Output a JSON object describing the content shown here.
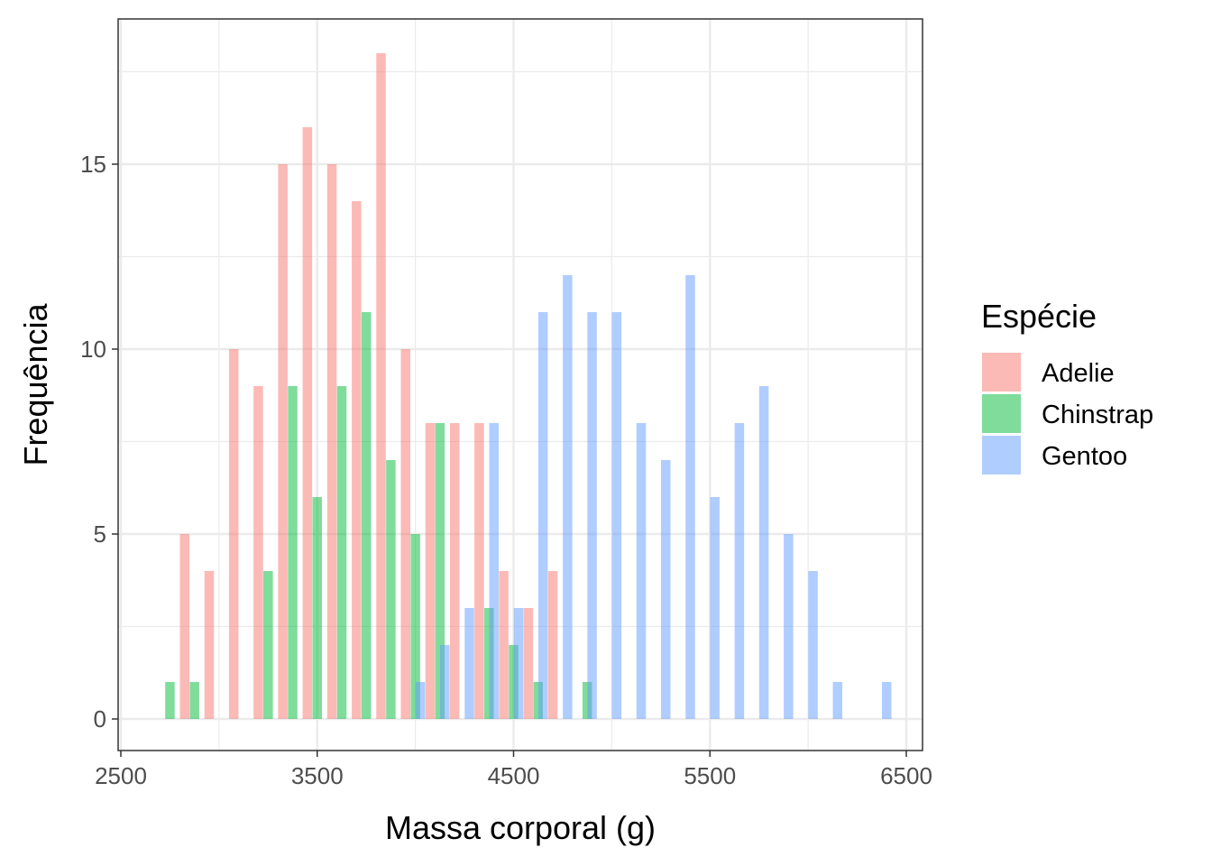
{
  "chart_data": {
    "type": "bar",
    "xlabel": "Massa corporal (g)",
    "ylabel": "Frequência",
    "xlim": [
      2500,
      6500
    ],
    "ylim": [
      0,
      18
    ],
    "x_ticks": [
      "2500",
      "3500",
      "4500",
      "5500",
      "6500"
    ],
    "y_ticks": [
      "0",
      "5",
      "10",
      "15"
    ],
    "grid": true,
    "legend": {
      "title": "Espécie",
      "placement": "right"
    },
    "series": [
      {
        "name": "Adelie",
        "color": "#F8766D",
        "points": [
          {
            "x": 2825,
            "y": 5
          },
          {
            "x": 2950,
            "y": 4
          },
          {
            "x": 3075,
            "y": 10
          },
          {
            "x": 3200,
            "y": 9
          },
          {
            "x": 3325,
            "y": 15
          },
          {
            "x": 3450,
            "y": 16
          },
          {
            "x": 3575,
            "y": 15
          },
          {
            "x": 3700,
            "y": 14
          },
          {
            "x": 3825,
            "y": 18
          },
          {
            "x": 3950,
            "y": 10
          },
          {
            "x": 4075,
            "y": 8
          },
          {
            "x": 4200,
            "y": 8
          },
          {
            "x": 4325,
            "y": 8
          },
          {
            "x": 4450,
            "y": 4
          },
          {
            "x": 4575,
            "y": 3
          },
          {
            "x": 4700,
            "y": 4
          }
        ]
      },
      {
        "name": "Chinstrap",
        "color": "#00BA38",
        "points": [
          {
            "x": 2750,
            "y": 1
          },
          {
            "x": 2875,
            "y": 1
          },
          {
            "x": 3250,
            "y": 4
          },
          {
            "x": 3375,
            "y": 9
          },
          {
            "x": 3500,
            "y": 6
          },
          {
            "x": 3625,
            "y": 9
          },
          {
            "x": 3750,
            "y": 11
          },
          {
            "x": 3875,
            "y": 7
          },
          {
            "x": 4000,
            "y": 5
          },
          {
            "x": 4125,
            "y": 8
          },
          {
            "x": 4375,
            "y": 3
          },
          {
            "x": 4500,
            "y": 2
          },
          {
            "x": 4625,
            "y": 1
          },
          {
            "x": 4875,
            "y": 1
          }
        ]
      },
      {
        "name": "Gentoo",
        "color": "#619CFF",
        "points": [
          {
            "x": 4025,
            "y": 1
          },
          {
            "x": 4150,
            "y": 2
          },
          {
            "x": 4275,
            "y": 3
          },
          {
            "x": 4400,
            "y": 8
          },
          {
            "x": 4525,
            "y": 3
          },
          {
            "x": 4650,
            "y": 11
          },
          {
            "x": 4775,
            "y": 12
          },
          {
            "x": 4900,
            "y": 11
          },
          {
            "x": 5025,
            "y": 11
          },
          {
            "x": 5150,
            "y": 8
          },
          {
            "x": 5275,
            "y": 7
          },
          {
            "x": 5400,
            "y": 12
          },
          {
            "x": 5525,
            "y": 6
          },
          {
            "x": 5650,
            "y": 8
          },
          {
            "x": 5775,
            "y": 9
          },
          {
            "x": 5900,
            "y": 5
          },
          {
            "x": 6025,
            "y": 4
          },
          {
            "x": 6150,
            "y": 1
          },
          {
            "x": 6400,
            "y": 1
          }
        ]
      }
    ]
  }
}
